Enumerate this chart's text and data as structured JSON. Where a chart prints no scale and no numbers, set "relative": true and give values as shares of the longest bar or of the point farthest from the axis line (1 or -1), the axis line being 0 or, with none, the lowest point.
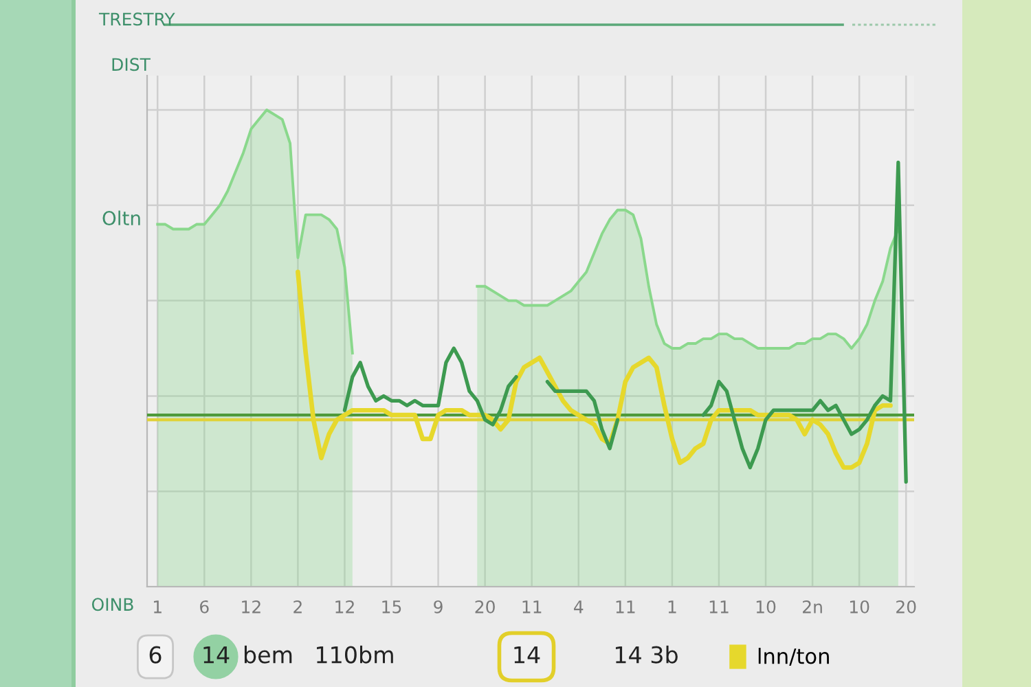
{
  "chart_data": {
    "type": "line",
    "title": "TRESTRY",
    "xlabel": "OINB",
    "ylabel": "DIST",
    "annotations": [
      "Oltn",
      "6",
      "14",
      "bem",
      "110bm",
      "14",
      "14 3b"
    ],
    "relative": true,
    "grid": true,
    "legend": "bottom",
    "categories": [
      "1",
      null,
      null,
      null,
      null,
      null,
      "6",
      null,
      null,
      null,
      null,
      null,
      "12",
      null,
      null,
      null,
      null,
      null,
      "2",
      null,
      null,
      null,
      null,
      null,
      "12",
      null,
      null,
      null,
      null,
      null,
      "15",
      null,
      null,
      null,
      null,
      null,
      "9",
      null,
      null,
      null,
      null,
      null,
      "20",
      null,
      null,
      null,
      null,
      null,
      "11",
      null,
      null,
      null,
      null,
      null,
      "4",
      null,
      null,
      null,
      null,
      null,
      "11",
      null,
      null,
      null,
      null,
      null,
      "1",
      null,
      null,
      null,
      null,
      null,
      "11",
      null,
      null,
      null,
      null,
      null,
      "10",
      null,
      null,
      null,
      null,
      null,
      "2n",
      null,
      null,
      null,
      null,
      null,
      "10",
      null,
      null,
      null,
      null,
      null,
      "20"
    ],
    "ref_lines": [
      {
        "axis": "y",
        "value": 0.36,
        "color": "#4e9a3a"
      },
      {
        "axis": "y",
        "value": 0.35,
        "color": "#e0d23a"
      }
    ],
    "series": [
      {
        "type": "area",
        "color": "#8ad88c",
        "values": [
          0.76,
          0.76,
          0.75,
          0.75,
          0.75,
          0.76,
          0.76,
          0.78,
          0.8,
          0.83,
          0.87,
          0.91,
          0.96,
          0.98,
          1.0,
          0.99,
          0.98,
          0.93,
          0.69,
          0.78,
          0.78,
          0.78,
          0.77,
          0.75,
          0.67,
          0.49,
          null,
          null,
          null,
          null,
          null,
          null,
          null,
          null,
          null,
          null,
          null,
          null,
          null,
          null,
          null,
          0.63,
          0.63,
          0.62,
          0.61,
          0.6,
          0.6,
          0.59,
          0.59,
          0.59,
          0.59,
          0.6,
          0.61,
          0.62,
          0.64,
          0.66,
          0.7,
          0.74,
          0.77,
          0.79,
          0.79,
          0.78,
          0.73,
          0.63,
          0.55,
          0.51,
          0.5,
          0.5,
          0.51,
          0.51,
          0.52,
          0.52,
          0.53,
          0.53,
          0.52,
          0.52,
          0.51,
          0.5,
          0.5,
          0.5,
          0.5,
          0.5,
          0.51,
          0.51,
          0.52,
          0.52,
          0.53,
          0.53,
          0.52,
          0.5,
          0.52,
          0.55,
          0.6,
          0.64,
          0.71,
          0.75,
          null
        ]
      },
      {
        "name": "lnn/ton",
        "color": "#e6d82c",
        "values": [
          null,
          null,
          null,
          null,
          null,
          null,
          null,
          null,
          null,
          null,
          null,
          null,
          null,
          null,
          null,
          null,
          null,
          null,
          0.66,
          0.49,
          0.35,
          0.27,
          0.32,
          0.35,
          0.36,
          0.37,
          0.37,
          0.37,
          0.37,
          0.37,
          0.36,
          0.36,
          0.36,
          0.36,
          0.31,
          0.31,
          0.36,
          0.37,
          0.37,
          0.37,
          0.36,
          0.36,
          0.36,
          0.35,
          0.33,
          0.35,
          0.43,
          0.46,
          0.47,
          0.48,
          0.45,
          0.42,
          0.39,
          0.37,
          0.36,
          0.35,
          0.34,
          0.31,
          0.3,
          0.35,
          0.43,
          0.46,
          0.47,
          0.48,
          0.46,
          0.38,
          0.31,
          0.26,
          0.27,
          0.29,
          0.3,
          0.35,
          0.37,
          0.37,
          0.37,
          0.37,
          0.37,
          0.36,
          0.36,
          0.36,
          0.36,
          0.36,
          0.35,
          0.32,
          0.35,
          0.34,
          0.32,
          0.28,
          0.25,
          0.25,
          0.26,
          0.3,
          0.37,
          0.38,
          0.38,
          null,
          null
        ]
      },
      {
        "color": "#3d9a50",
        "values": [
          null,
          null,
          null,
          null,
          null,
          null,
          null,
          null,
          null,
          null,
          null,
          null,
          null,
          null,
          null,
          null,
          null,
          null,
          null,
          null,
          null,
          null,
          null,
          null,
          0.37,
          0.44,
          0.47,
          0.42,
          0.39,
          0.4,
          0.39,
          0.39,
          0.38,
          0.39,
          0.38,
          0.38,
          0.38,
          0.47,
          0.5,
          0.47,
          0.41,
          0.39,
          0.35,
          0.34,
          0.37,
          0.42,
          0.44,
          null,
          null,
          null,
          0.43,
          0.41,
          0.41,
          0.41,
          0.41,
          0.41,
          0.39,
          0.33,
          0.29,
          0.35,
          null,
          null,
          null,
          null,
          null,
          null,
          null,
          null,
          null,
          null,
          0.36,
          0.38,
          0.43,
          0.41,
          0.35,
          0.29,
          0.25,
          0.29,
          0.35,
          0.37,
          0.37,
          0.37,
          0.37,
          0.37,
          0.37,
          0.39,
          0.37,
          0.38,
          0.35,
          0.32,
          0.33,
          0.35,
          0.38,
          0.4,
          0.39,
          0.89,
          0.22
        ]
      }
    ]
  }
}
